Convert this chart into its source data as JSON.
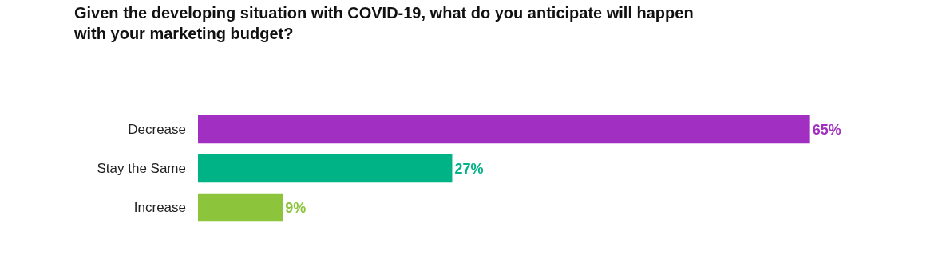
{
  "chart_data": {
    "type": "bar",
    "orientation": "horizontal",
    "title": "Given the developing situation with COVID-19, what do you anticipate will happen with your marketing budget?",
    "categories": [
      "Decrease",
      "Stay the Same",
      "Increase"
    ],
    "values": [
      65,
      27,
      9
    ],
    "value_labels": [
      "65%",
      "27%",
      "9%"
    ],
    "colors": [
      "#a12fc1",
      "#00b386",
      "#8cc43c"
    ],
    "grid": false,
    "legend": false
  }
}
